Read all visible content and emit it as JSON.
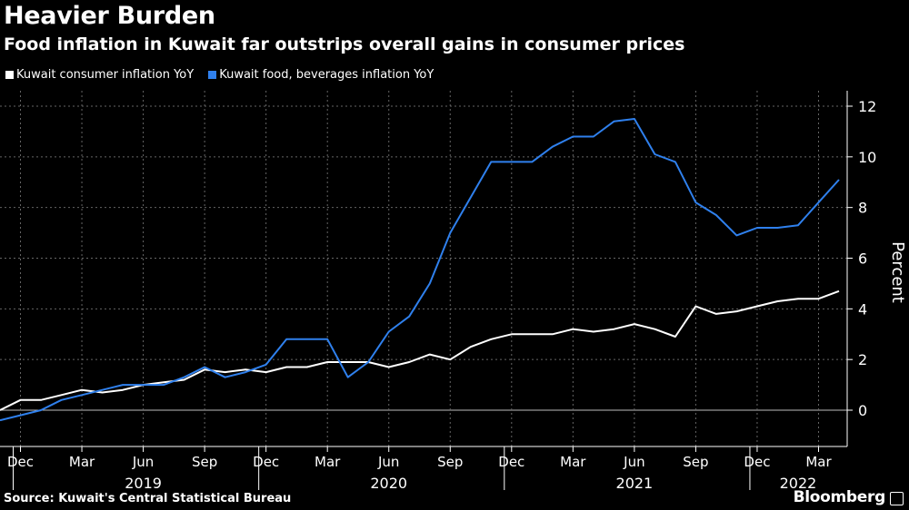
{
  "header": {
    "title": "Heavier Burden",
    "subtitle": "Food inflation in Kuwait far outstrips overall gains in consumer prices"
  },
  "footer": {
    "source": "Source: Kuwait's Central Statistical Bureau",
    "brand": "Bloomberg"
  },
  "colors": {
    "background": "#000000",
    "series_white": "#ffffff",
    "series_blue": "#2f80ed",
    "grid": "#6a6a6a"
  },
  "chart_data": {
    "type": "line",
    "title": "Heavier Burden",
    "subtitle": "Food inflation in Kuwait far outstrips overall gains in consumer prices",
    "ylabel": "Percent",
    "ylim": [
      -1.5,
      12.8
    ],
    "yticks": [
      0,
      2,
      4,
      6,
      8,
      10,
      12
    ],
    "grid": true,
    "legend_position": "top-left",
    "x": [
      "2018-11",
      "2018-12",
      "2019-01",
      "2019-02",
      "2019-03",
      "2019-04",
      "2019-05",
      "2019-06",
      "2019-07",
      "2019-08",
      "2019-09",
      "2019-10",
      "2019-11",
      "2019-12",
      "2020-01",
      "2020-02",
      "2020-03",
      "2020-04",
      "2020-05",
      "2020-06",
      "2020-07",
      "2020-08",
      "2020-09",
      "2020-10",
      "2020-11",
      "2020-12",
      "2021-01",
      "2021-02",
      "2021-03",
      "2021-04",
      "2021-05",
      "2021-06",
      "2021-07",
      "2021-08",
      "2021-09",
      "2021-10",
      "2021-11",
      "2021-12",
      "2022-01",
      "2022-02",
      "2022-03",
      "2022-04"
    ],
    "x_tick_labels": [
      {
        "label": "Dec",
        "month": "2018-12"
      },
      {
        "label": "Mar",
        "month": "2019-03"
      },
      {
        "label": "Jun",
        "month": "2019-06"
      },
      {
        "label": "Sep",
        "month": "2019-09"
      },
      {
        "label": "Dec",
        "month": "2019-12"
      },
      {
        "label": "Mar",
        "month": "2020-03"
      },
      {
        "label": "Jun",
        "month": "2020-06"
      },
      {
        "label": "Sep",
        "month": "2020-09"
      },
      {
        "label": "Dec",
        "month": "2020-12"
      },
      {
        "label": "Mar",
        "month": "2021-03"
      },
      {
        "label": "Jun",
        "month": "2021-06"
      },
      {
        "label": "Sep",
        "month": "2021-09"
      },
      {
        "label": "Dec",
        "month": "2021-12"
      },
      {
        "label": "Mar",
        "month": "2022-03"
      }
    ],
    "year_labels": [
      {
        "label": "2019",
        "month": "2019-06"
      },
      {
        "label": "2020",
        "month": "2020-06"
      },
      {
        "label": "2021",
        "month": "2021-06"
      },
      {
        "label": "2022",
        "month": "2022-02"
      }
    ],
    "year_boundaries": [
      "2018-12",
      "2019-12",
      "2020-12",
      "2021-12"
    ],
    "series": [
      {
        "name": "Kuwait consumer inflation YoY",
        "color": "#ffffff",
        "values": [
          0.0,
          0.4,
          0.4,
          0.6,
          0.8,
          0.7,
          0.8,
          1.0,
          1.1,
          1.2,
          1.6,
          1.5,
          1.6,
          1.5,
          1.7,
          1.7,
          1.9,
          1.9,
          1.9,
          1.7,
          1.9,
          2.2,
          2.0,
          2.5,
          2.8,
          3.0,
          3.0,
          3.0,
          3.2,
          3.1,
          3.2,
          3.4,
          3.2,
          2.9,
          4.1,
          3.8,
          3.9,
          4.1,
          4.3,
          4.4,
          4.4,
          4.7
        ]
      },
      {
        "name": "Kuwait food, beverages inflation YoY",
        "color": "#2f80ed",
        "values": [
          -0.4,
          -0.2,
          0.0,
          0.4,
          0.6,
          0.8,
          1.0,
          1.0,
          1.0,
          1.3,
          1.7,
          1.3,
          1.5,
          1.8,
          2.8,
          2.8,
          2.8,
          1.3,
          1.9,
          3.1,
          3.7,
          5.0,
          7.0,
          8.4,
          9.8,
          9.8,
          9.8,
          10.4,
          10.8,
          10.8,
          11.4,
          11.5,
          10.1,
          9.8,
          8.2,
          7.7,
          6.9,
          7.2,
          7.2,
          7.3,
          8.2,
          9.1
        ]
      }
    ]
  }
}
